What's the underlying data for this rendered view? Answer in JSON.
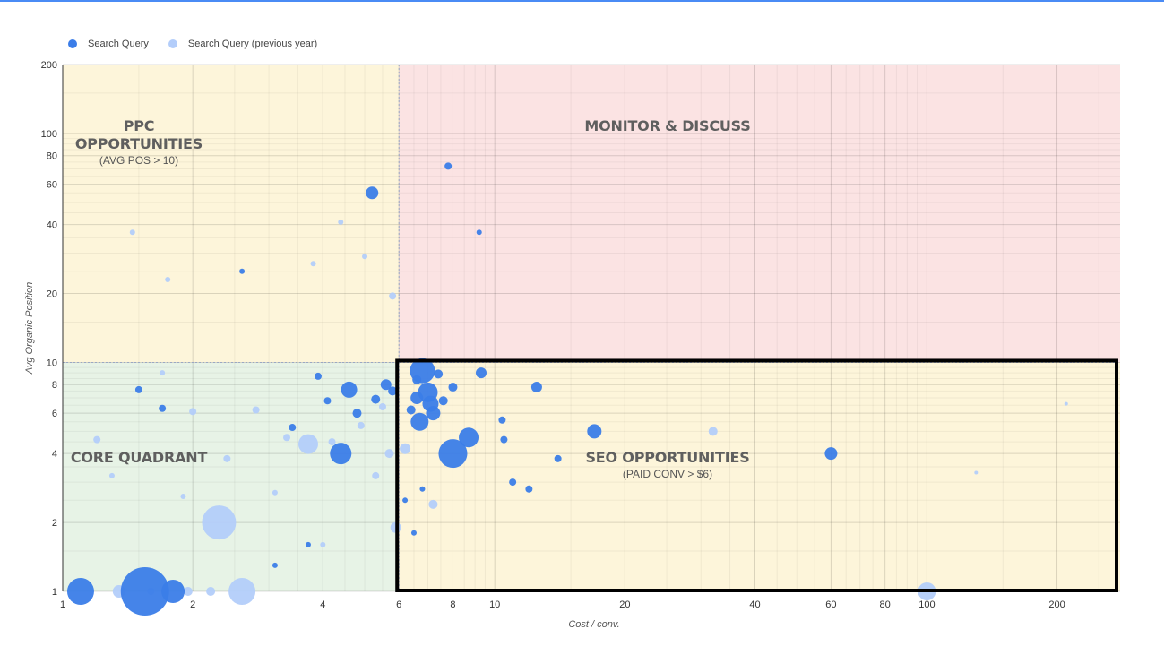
{
  "legend": {
    "current": {
      "label": "Search Query",
      "color": "#3b7de8"
    },
    "previous": {
      "label": "Search Query (previous year)",
      "color": "#b3cdfa"
    }
  },
  "chart_data": {
    "type": "scatter",
    "title": "",
    "xlabel": "Cost / conv.",
    "ylabel": "Avg Organic Position",
    "x_scale": "log",
    "y_scale": "log",
    "xlim": [
      1,
      280
    ],
    "ylim": [
      1,
      200
    ],
    "x_ticks": [
      1,
      2,
      4,
      6,
      8,
      10,
      20,
      40,
      60,
      80,
      100,
      200
    ],
    "y_ticks": [
      1,
      2,
      4,
      6,
      8,
      10,
      20,
      40,
      60,
      80,
      100,
      200
    ],
    "grid": true,
    "legend_position": "top-left",
    "quadrants": [
      {
        "name": "PPC OPPORTUNITIES",
        "lines": [
          "PPC",
          "OPPORTUNITIES"
        ],
        "subtitle": "(AVG POS > 10)",
        "x_range": [
          1,
          6
        ],
        "y_range": [
          10,
          200
        ],
        "color": "#fdf5da"
      },
      {
        "name": "MONITOR & DISCUSS",
        "lines": [
          "MONITOR & DISCUSS"
        ],
        "subtitle": "",
        "x_range": [
          6,
          280
        ],
        "y_range": [
          10,
          200
        ],
        "color": "#fbe3e3"
      },
      {
        "name": "CORE QUADRANT",
        "lines": [
          "CORE QUADRANT"
        ],
        "subtitle": "",
        "x_range": [
          1,
          6
        ],
        "y_range": [
          1,
          10
        ],
        "color": "#e7f3e6"
      },
      {
        "name": "SEO OPPORTUNITIES",
        "lines": [
          "SEO OPPORTUNITIES"
        ],
        "subtitle": "(PAID CONV > $6)",
        "x_range": [
          6,
          280
        ],
        "y_range": [
          1,
          10
        ],
        "color": "#fdf5da"
      }
    ],
    "highlight_box": {
      "x_range": [
        6,
        280
      ],
      "y_range": [
        1,
        10
      ]
    },
    "series": [
      {
        "name": "Search Query",
        "color": "#3b7de8",
        "points": [
          [
            1.1,
            1.0,
            15
          ],
          [
            1.55,
            1.0,
            27
          ],
          [
            1.8,
            1.0,
            13
          ],
          [
            5.2,
            55,
            7
          ],
          [
            7.8,
            72,
            4
          ],
          [
            6.8,
            9.2,
            14
          ],
          [
            7.0,
            7.4,
            11
          ],
          [
            7.1,
            6.6,
            9
          ],
          [
            7.2,
            6.0,
            8
          ],
          [
            6.7,
            5.5,
            10
          ],
          [
            8.0,
            4.0,
            16
          ],
          [
            8.7,
            4.7,
            11
          ],
          [
            4.4,
            4.0,
            12
          ],
          [
            4.6,
            7.6,
            9
          ],
          [
            6.6,
            7.0,
            7
          ],
          [
            17,
            5.0,
            8
          ],
          [
            60,
            4.0,
            7
          ],
          [
            5.6,
            8.0,
            6
          ],
          [
            8.0,
            7.8,
            5
          ],
          [
            12.5,
            7.8,
            6
          ],
          [
            9.3,
            9.0,
            6
          ],
          [
            10.5,
            4.6,
            4
          ],
          [
            11,
            3.0,
            4
          ],
          [
            12,
            2.8,
            4
          ],
          [
            9.2,
            37,
            3
          ],
          [
            2.6,
            25,
            3
          ],
          [
            6.2,
            2.5,
            3
          ],
          [
            6.5,
            1.8,
            3
          ],
          [
            6.8,
            2.8,
            3
          ],
          [
            6.4,
            6.2,
            5
          ],
          [
            5.8,
            7.5,
            5
          ],
          [
            6.6,
            8.4,
            5
          ],
          [
            7.4,
            8.9,
            5
          ],
          [
            7.6,
            6.8,
            5
          ],
          [
            10.4,
            5.6,
            4
          ],
          [
            14,
            3.8,
            4
          ],
          [
            3.1,
            1.3,
            3
          ],
          [
            3.7,
            1.6,
            3
          ],
          [
            4.1,
            6.8,
            4
          ],
          [
            3.9,
            8.7,
            4
          ],
          [
            4.8,
            6.0,
            5
          ],
          [
            5.3,
            6.9,
            5
          ],
          [
            1.7,
            6.3,
            4
          ],
          [
            1.5,
            7.6,
            4
          ],
          [
            3.4,
            5.2,
            4
          ]
        ]
      },
      {
        "name": "Search Query (previous year)",
        "color": "#b3cdfa",
        "points": [
          [
            2.3,
            2.0,
            19
          ],
          [
            2.6,
            1.0,
            15
          ],
          [
            3.7,
            4.4,
            11
          ],
          [
            5.8,
            19.5,
            4
          ],
          [
            5.9,
            1.9,
            6
          ],
          [
            6.2,
            4.2,
            6
          ],
          [
            7.2,
            2.4,
            5
          ],
          [
            5.7,
            4.0,
            5
          ],
          [
            2.2,
            1.0,
            5
          ],
          [
            1.35,
            1.0,
            7
          ],
          [
            1.95,
            1.0,
            5
          ],
          [
            1.6,
            1.0,
            4
          ],
          [
            100,
            1.0,
            10
          ],
          [
            32,
            5.0,
            5
          ],
          [
            210,
            6.6,
            2
          ],
          [
            130,
            3.3,
            2
          ],
          [
            5.0,
            29,
            3
          ],
          [
            4.4,
            41,
            3
          ],
          [
            1.2,
            4.6,
            4
          ],
          [
            2.8,
            6.2,
            4
          ],
          [
            3.3,
            4.7,
            4
          ],
          [
            4.2,
            4.5,
            4
          ],
          [
            5.3,
            3.2,
            4
          ],
          [
            2.4,
            3.8,
            4
          ],
          [
            1.9,
            2.6,
            3
          ],
          [
            3.1,
            2.7,
            3
          ],
          [
            4.9,
            5.3,
            4
          ],
          [
            5.5,
            6.4,
            4
          ],
          [
            4.0,
            1.6,
            3
          ],
          [
            3.8,
            27,
            3
          ],
          [
            1.7,
            9.0,
            3
          ],
          [
            2.0,
            6.1,
            4
          ],
          [
            1.3,
            3.2,
            3
          ],
          [
            1.45,
            37,
            3
          ],
          [
            1.75,
            23,
            3
          ]
        ]
      }
    ]
  }
}
